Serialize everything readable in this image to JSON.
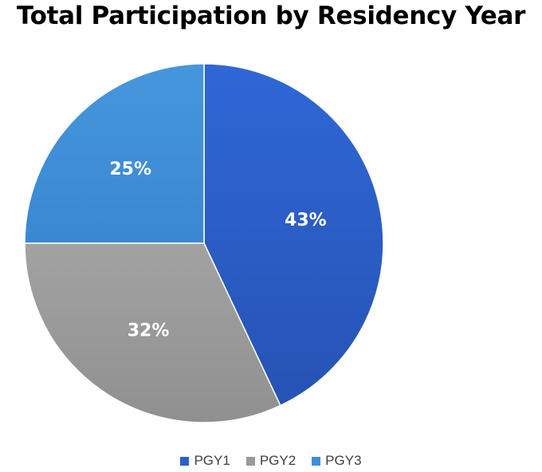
{
  "chart_data": {
    "type": "pie",
    "title": "Total Participation by Residency Year",
    "slices": [
      {
        "label": "PGY1",
        "value": 43,
        "display": "43%",
        "color": "#2c5fcb"
      },
      {
        "label": "PGY2",
        "value": 32,
        "display": "32%",
        "color": "#999999"
      },
      {
        "label": "PGY3",
        "value": 25,
        "display": "25%",
        "color": "#3f8fd8"
      }
    ],
    "legend_position": "bottom",
    "start_angle": "12 o'clock, clockwise"
  }
}
